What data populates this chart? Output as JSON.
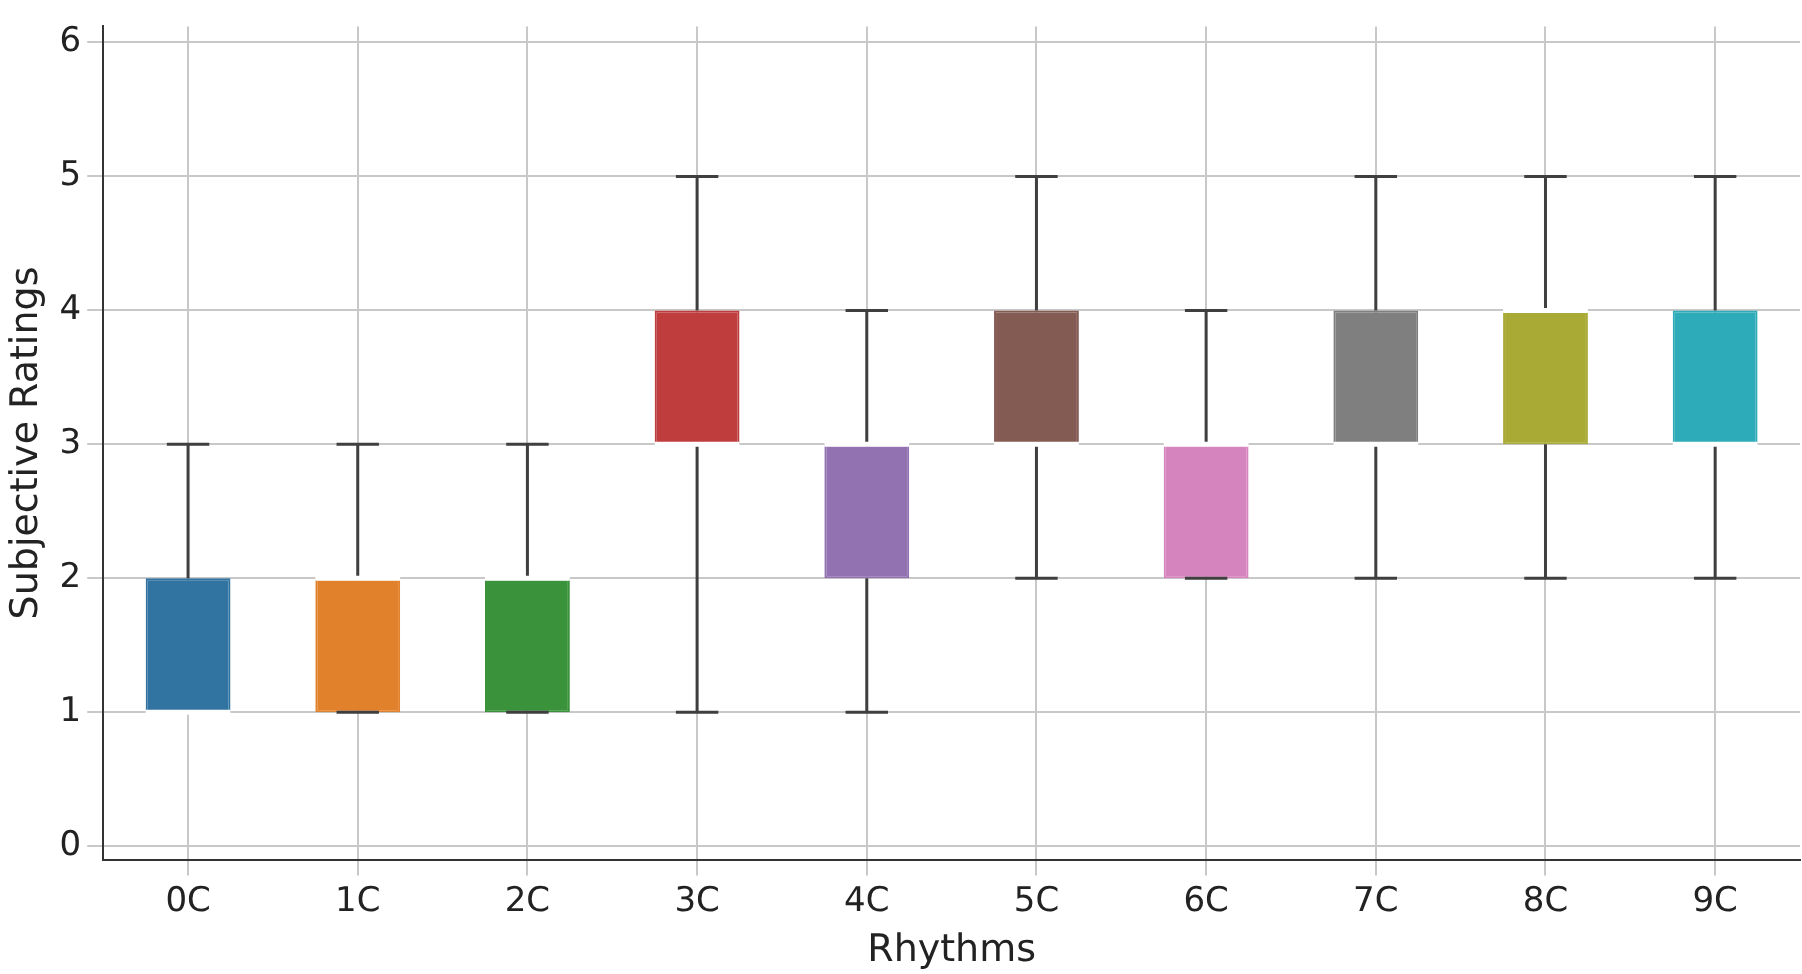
{
  "chart_data": {
    "type": "box",
    "xlabel": "Rhythms",
    "ylabel": "Subjective Ratings",
    "categories": [
      "0C",
      "1C",
      "2C",
      "3C",
      "4C",
      "5C",
      "6C",
      "7C",
      "8C",
      "9C"
    ],
    "colors": [
      "#3274a1",
      "#e1812c",
      "#3a923a",
      "#c03d3e",
      "#9372b2",
      "#845b53",
      "#d684bd",
      "#7f7f7f",
      "#a9aa35",
      "#2eabb8"
    ],
    "boxes": [
      {
        "low": 1,
        "q1": 1,
        "median": 1,
        "q3": 2,
        "high": 3
      },
      {
        "low": 1,
        "q1": 1,
        "median": 2,
        "q3": 2,
        "high": 3
      },
      {
        "low": 1,
        "q1": 1,
        "median": 2,
        "q3": 2,
        "high": 3
      },
      {
        "low": 1,
        "q1": 3,
        "median": 3,
        "q3": 4,
        "high": 5
      },
      {
        "low": 1,
        "q1": 2,
        "median": 3,
        "q3": 3,
        "high": 4
      },
      {
        "low": 2,
        "q1": 3,
        "median": 3,
        "q3": 4,
        "high": 5
      },
      {
        "low": 2,
        "q1": 2,
        "median": 3,
        "q3": 3,
        "high": 4
      },
      {
        "low": 2,
        "q1": 3,
        "median": 3,
        "q3": 4,
        "high": 5
      },
      {
        "low": 2,
        "q1": 3,
        "median": 4,
        "q3": 4,
        "high": 5
      },
      {
        "low": 2,
        "q1": 3,
        "median": 3,
        "q3": 4,
        "high": 5
      }
    ],
    "ylim": [
      -0.1,
      6.12
    ],
    "yticks": [
      0,
      1,
      2,
      3,
      4,
      5,
      6
    ],
    "grid": true
  }
}
